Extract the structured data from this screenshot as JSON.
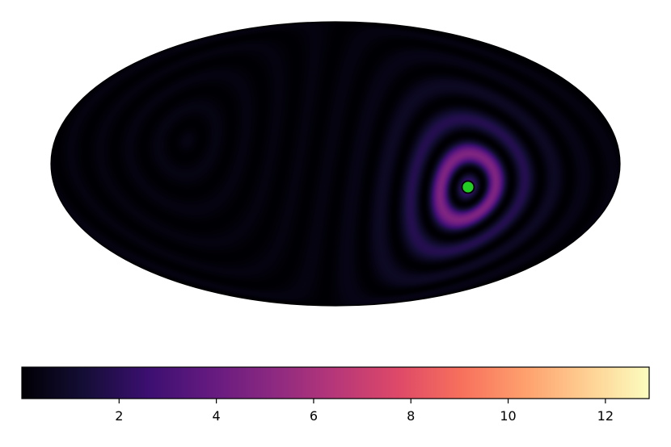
{
  "chart_data": {
    "type": "heatmap",
    "projection": "mollweide",
    "colormap": "magma",
    "colorbar": {
      "orientation": "horizontal",
      "placement": "bottom",
      "range": [
        0,
        12.9
      ],
      "ticks": [
        2,
        4,
        6,
        8,
        10,
        12
      ],
      "tick_labels": [
        "2",
        "4",
        "6",
        "8",
        "10",
        "12"
      ]
    },
    "source": {
      "lon": 85,
      "lat": -12,
      "marker_color": "#22cc22",
      "peak_value": 12.9
    },
    "antipode": {
      "lon": -95,
      "lat": 12
    },
    "ring_count_visible": 10,
    "title": "",
    "xlabel": "",
    "ylabel": ""
  },
  "colors": {
    "background": "#ffffff",
    "map_edge": "#000000",
    "marker_fill": "#22cc22",
    "marker_edge": "#000000"
  }
}
